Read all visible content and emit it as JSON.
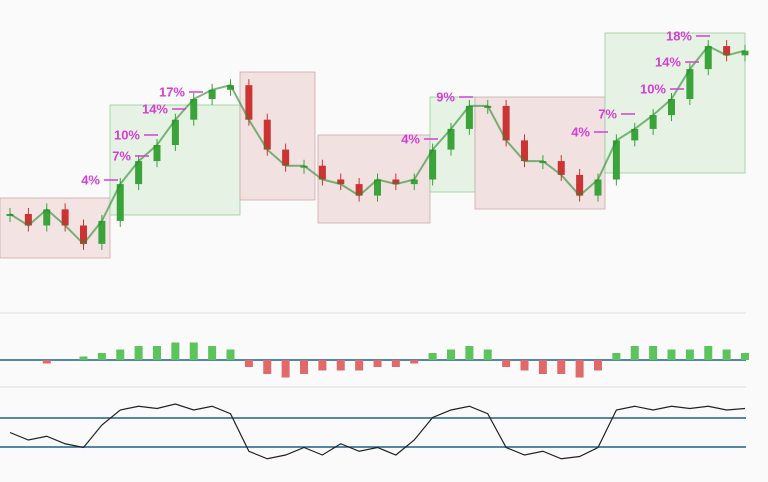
{
  "chart_data": {
    "type": "candlestick",
    "annotations": [
      {
        "value": 4,
        "label": "4%"
      },
      {
        "value": 7,
        "label": "7%"
      },
      {
        "value": 10,
        "label": "10%"
      },
      {
        "value": 14,
        "label": "14%"
      },
      {
        "value": 17,
        "label": "17%"
      },
      {
        "value": 4,
        "label": "4%"
      },
      {
        "value": 9,
        "label": "9%"
      },
      {
        "value": 4,
        "label": "4%"
      },
      {
        "value": 7,
        "label": "7%"
      },
      {
        "value": 10,
        "label": "10%"
      },
      {
        "value": 14,
        "label": "14%"
      },
      {
        "value": 18,
        "label": "18%"
      }
    ],
    "values": [
      20,
      15,
      22,
      15,
      7,
      17,
      33,
      43,
      50,
      61,
      70,
      74,
      76,
      61,
      48,
      41,
      41,
      35,
      33,
      28,
      35,
      33,
      35,
      48,
      57,
      67,
      67,
      52,
      43,
      43,
      37,
      28,
      35,
      52,
      57,
      63,
      70,
      83,
      93,
      89,
      91
    ],
    "ylim": [
      0,
      100
    ],
    "macd": [
      0,
      0,
      -1,
      0,
      1,
      2,
      3,
      4,
      4,
      5,
      5,
      4,
      3,
      -2,
      -4,
      -5,
      -4,
      -3,
      -3,
      -3,
      -2,
      -2,
      -1,
      2,
      3,
      4,
      3,
      -2,
      -3,
      -4,
      -4,
      -5,
      -3,
      2,
      4,
      4,
      3,
      3,
      4,
      3,
      2
    ],
    "macd_lim": [
      -10,
      10
    ],
    "stoch": [
      50,
      40,
      45,
      35,
      30,
      60,
      80,
      85,
      82,
      88,
      80,
      85,
      75,
      25,
      15,
      20,
      30,
      20,
      35,
      25,
      30,
      20,
      40,
      70,
      80,
      85,
      75,
      30,
      20,
      25,
      15,
      18,
      30,
      80,
      85,
      80,
      85,
      82,
      85,
      80,
      82
    ],
    "stoch_lim": [
      0,
      100
    ]
  }
}
